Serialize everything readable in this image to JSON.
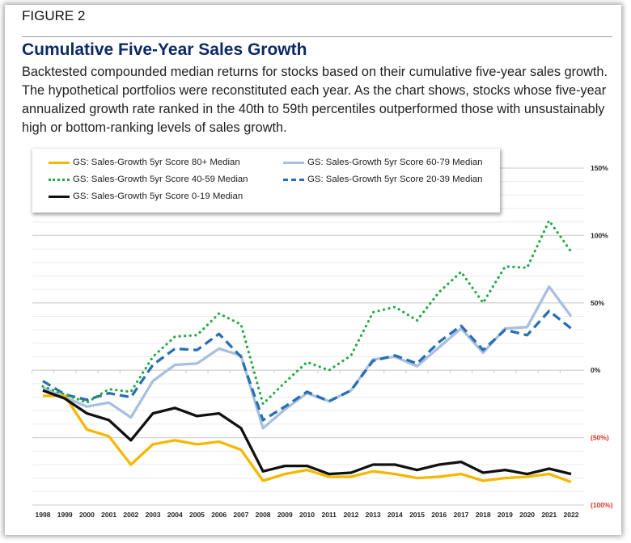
{
  "figure_label": "FIGURE 2",
  "title": "Cumulative Five-Year Sales Growth",
  "description": "Backtested compounded median returns for stocks based on their cumulative five-year sales growth. The hypothetical portfolios were reconstituted each year. As the chart shows, stocks whose five-year annualized growth rate ranked in the 40th to 59th percentiles outperformed those with unsustainably high or bottom-ranking levels of sales growth.",
  "chart_data": {
    "type": "line",
    "x": [
      "1998",
      "1999",
      "2000",
      "2001",
      "2002",
      "2003",
      "2004",
      "2005",
      "2006",
      "2007",
      "2008",
      "2009",
      "2010",
      "2011",
      "2012",
      "2013",
      "2014",
      "2015",
      "2016",
      "2017",
      "2018",
      "2019",
      "2020",
      "2021",
      "2022"
    ],
    "ylim": [
      -100,
      150
    ],
    "yticks": [
      150,
      100,
      50,
      0,
      -50,
      -100
    ],
    "ytick_labels": [
      "150%",
      "100%",
      "50%",
      "0%",
      "(50%)",
      "(100%)"
    ],
    "negative_tick_color": "#e0301e",
    "grid": true,
    "legend_placement": "top-left",
    "series": [
      {
        "name": "GS: Sales-Growth 5yr Score 80+ Median",
        "color": "#f5b800",
        "style": "solid",
        "values": [
          -19,
          -19,
          -44,
          -49,
          -70,
          -55,
          -52,
          -55,
          -53,
          -59,
          -82,
          -77,
          -74,
          -79,
          -79,
          -75,
          -77,
          -80,
          -79,
          -77,
          -82,
          -80,
          -79,
          -77,
          -83
        ]
      },
      {
        "name": "GS: Sales-Growth 5yr Score 60-79 Median",
        "color": "#a9bfe0",
        "style": "solid",
        "values": [
          -13,
          -20,
          -27,
          -24,
          -35,
          -8,
          4,
          5,
          16,
          11,
          -43,
          -29,
          -17,
          -23,
          -15,
          8,
          10,
          3,
          17,
          31,
          13,
          31,
          32,
          62,
          40
        ]
      },
      {
        "name": "GS: Sales-Growth 5yr Score 40-59 Median",
        "color": "#22a845",
        "style": "dotted",
        "values": [
          -12,
          -18,
          -24,
          -14,
          -16,
          10,
          25,
          26,
          42,
          34,
          -25,
          -9,
          6,
          0,
          11,
          43,
          47,
          37,
          58,
          73,
          50,
          77,
          76,
          111,
          88
        ]
      },
      {
        "name": "GS: Sales-Growth 5yr Score 20-39 Median",
        "color": "#2a6fb0",
        "style": "dashed",
        "values": [
          -8,
          -18,
          -22,
          -17,
          -20,
          4,
          16,
          15,
          27,
          10,
          -37,
          -27,
          -16,
          -23,
          -15,
          7,
          11,
          5,
          21,
          33,
          15,
          30,
          26,
          44,
          31
        ]
      },
      {
        "name": "GS: Sales-Growth 5yr Score 0-19 Median",
        "color": "#111111",
        "style": "solid",
        "values": [
          -15,
          -21,
          -32,
          -37,
          -52,
          -32,
          -28,
          -34,
          -32,
          -43,
          -75,
          -71,
          -71,
          -77,
          -76,
          -70,
          -70,
          -74,
          -70,
          -68,
          -76,
          -74,
          -77,
          -73,
          -77
        ]
      }
    ]
  }
}
